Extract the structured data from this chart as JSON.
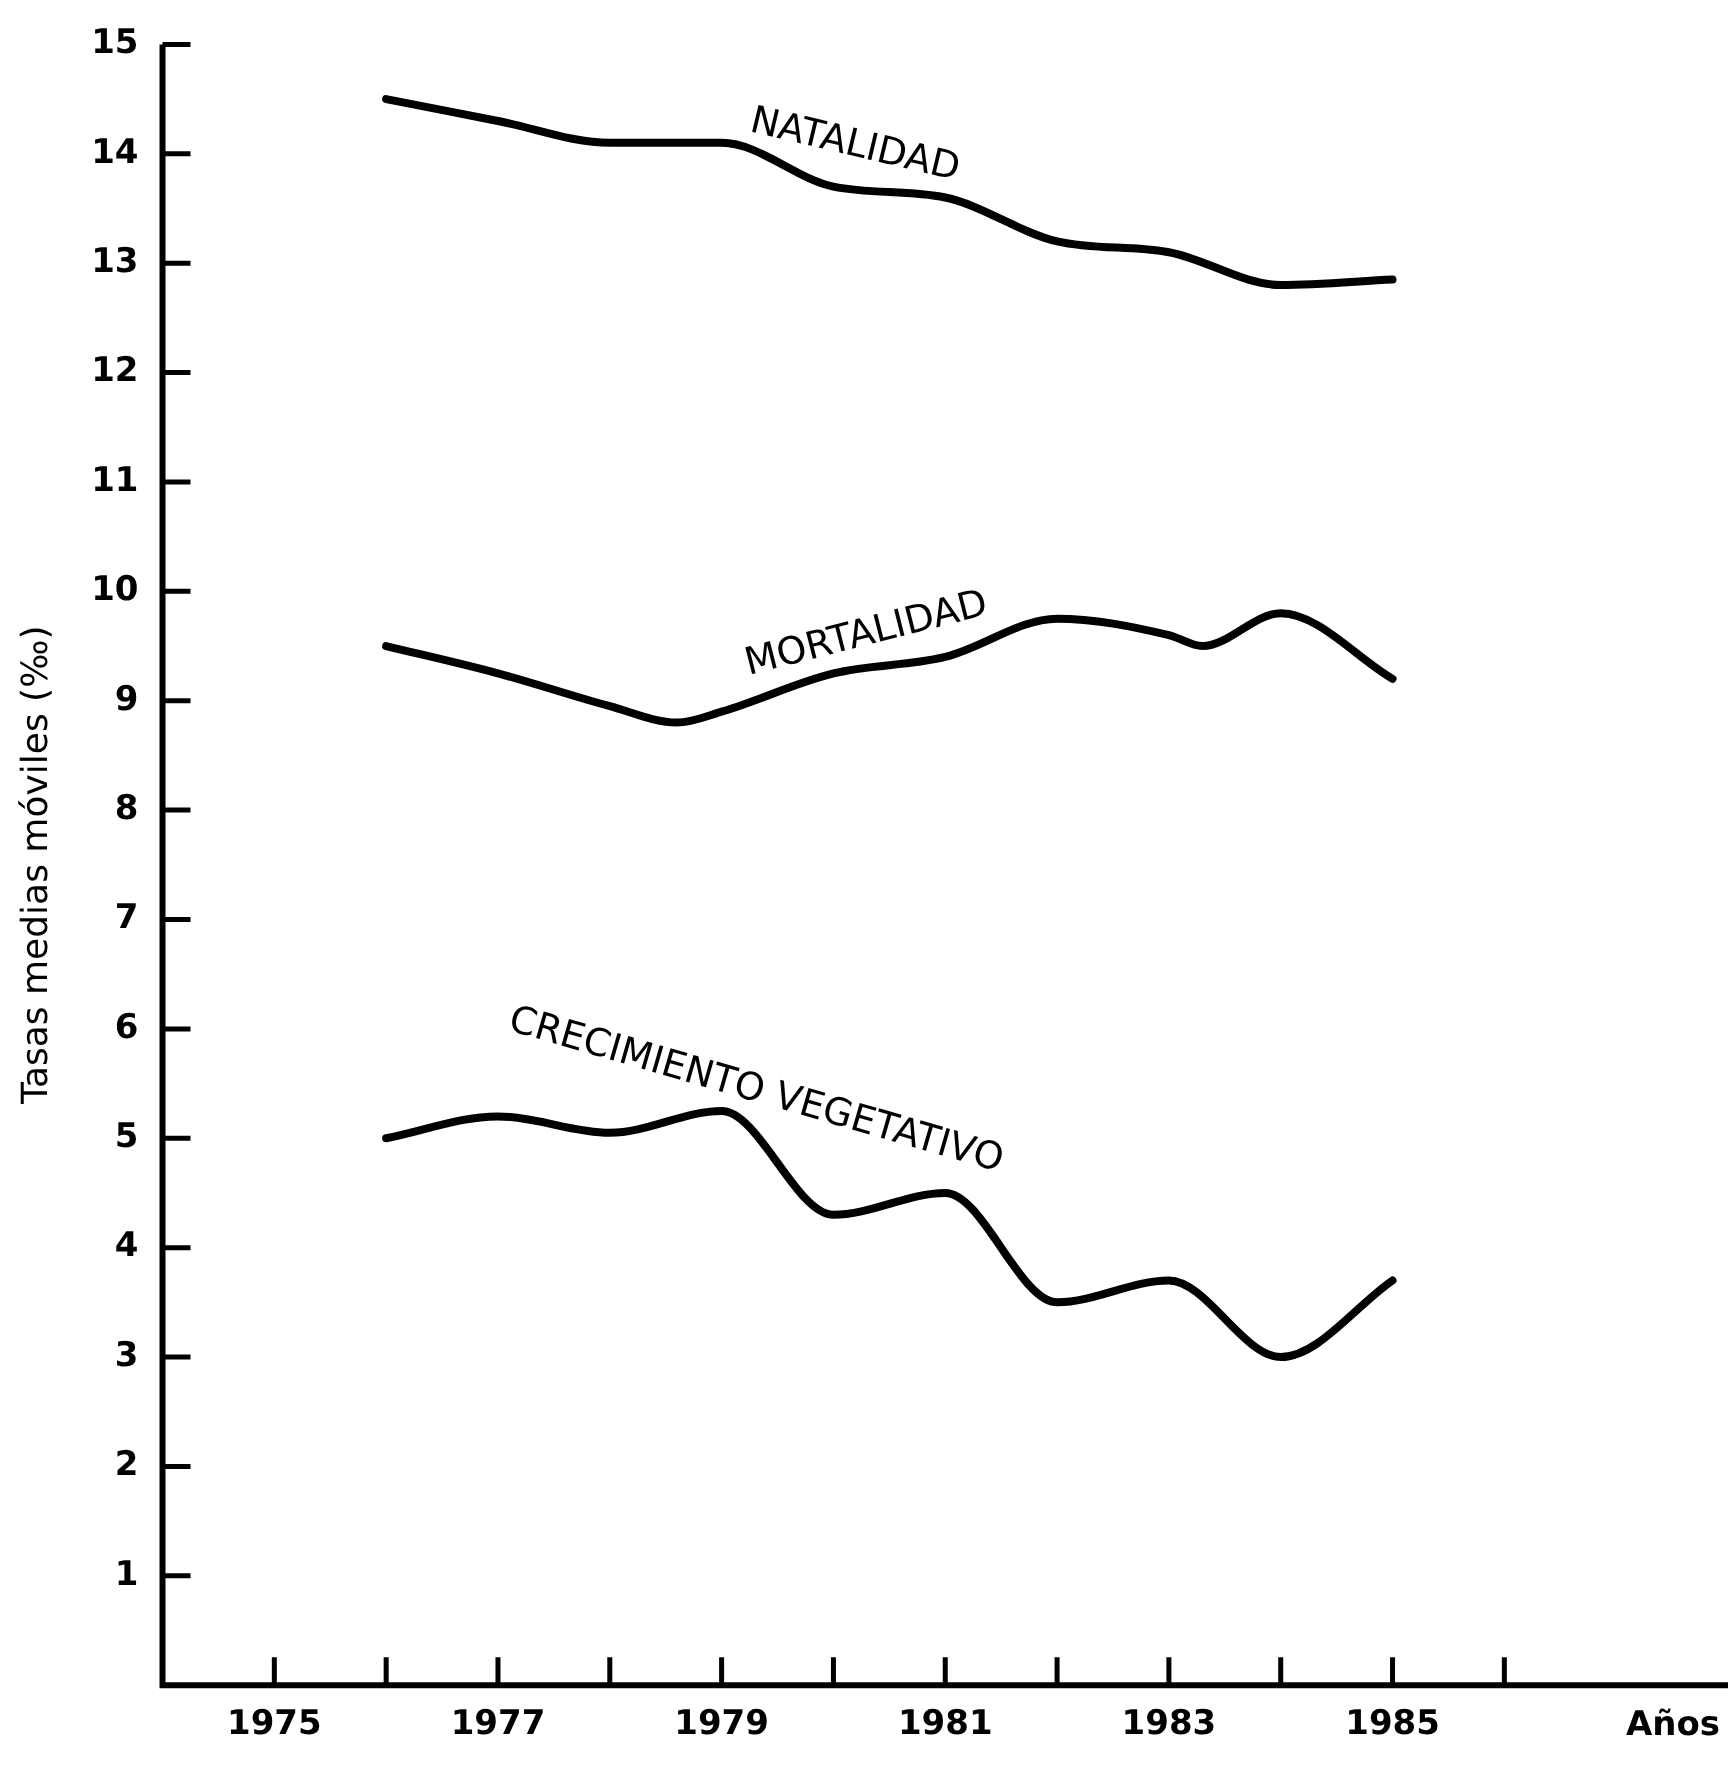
{
  "chart_data": {
    "type": "line",
    "xlabel": "Años",
    "ylabel": "Tasas medias móviles (‰)",
    "xlim": [
      1974,
      1988
    ],
    "xticks": [
      1975,
      {
        "value": 1976,
        "label": null
      },
      1977,
      {
        "value": 1978,
        "label": null
      },
      1979,
      {
        "value": 1980,
        "label": null
      },
      1981,
      {
        "value": 1982,
        "label": null
      },
      1983,
      {
        "value": 1984,
        "label": null
      },
      1985,
      {
        "value": 1986,
        "label": null
      }
    ],
    "ylim": [
      0,
      15
    ],
    "yticks": [
      1,
      2,
      3,
      4,
      5,
      6,
      7,
      8,
      9,
      10,
      11,
      12,
      13,
      14,
      15
    ],
    "grid": false,
    "legend": false,
    "marker": "none",
    "line_style": "solid",
    "series": [
      {
        "name": "NATALIDAD",
        "color": "#000000",
        "x": [
          1976,
          1977,
          1978,
          1979,
          1980,
          1981,
          1982,
          1983,
          1984,
          1985
        ],
        "values": [
          14.5,
          14.3,
          14.1,
          14.1,
          13.7,
          13.6,
          13.2,
          13.1,
          12.8,
          12.85
        ]
      },
      {
        "name": "MORTALIDAD",
        "color": "#000000",
        "x": [
          1976,
          1977,
          1978,
          1978.6,
          1979,
          1980,
          1981,
          1982,
          1983,
          1983.3,
          1984,
          1985
        ],
        "values": [
          9.5,
          9.25,
          8.95,
          8.8,
          8.9,
          9.25,
          9.4,
          9.75,
          9.6,
          9.5,
          9.8,
          9.2
        ]
      },
      {
        "name": "CRECIMIENTO VEGETATIVO",
        "color": "#000000",
        "x": [
          1976,
          1977,
          1978,
          1979,
          1980,
          1981,
          1982,
          1983,
          1984,
          1985
        ],
        "values": [
          5.0,
          5.2,
          5.05,
          5.25,
          4.3,
          4.5,
          3.5,
          3.7,
          3.0,
          3.7
        ]
      }
    ]
  }
}
